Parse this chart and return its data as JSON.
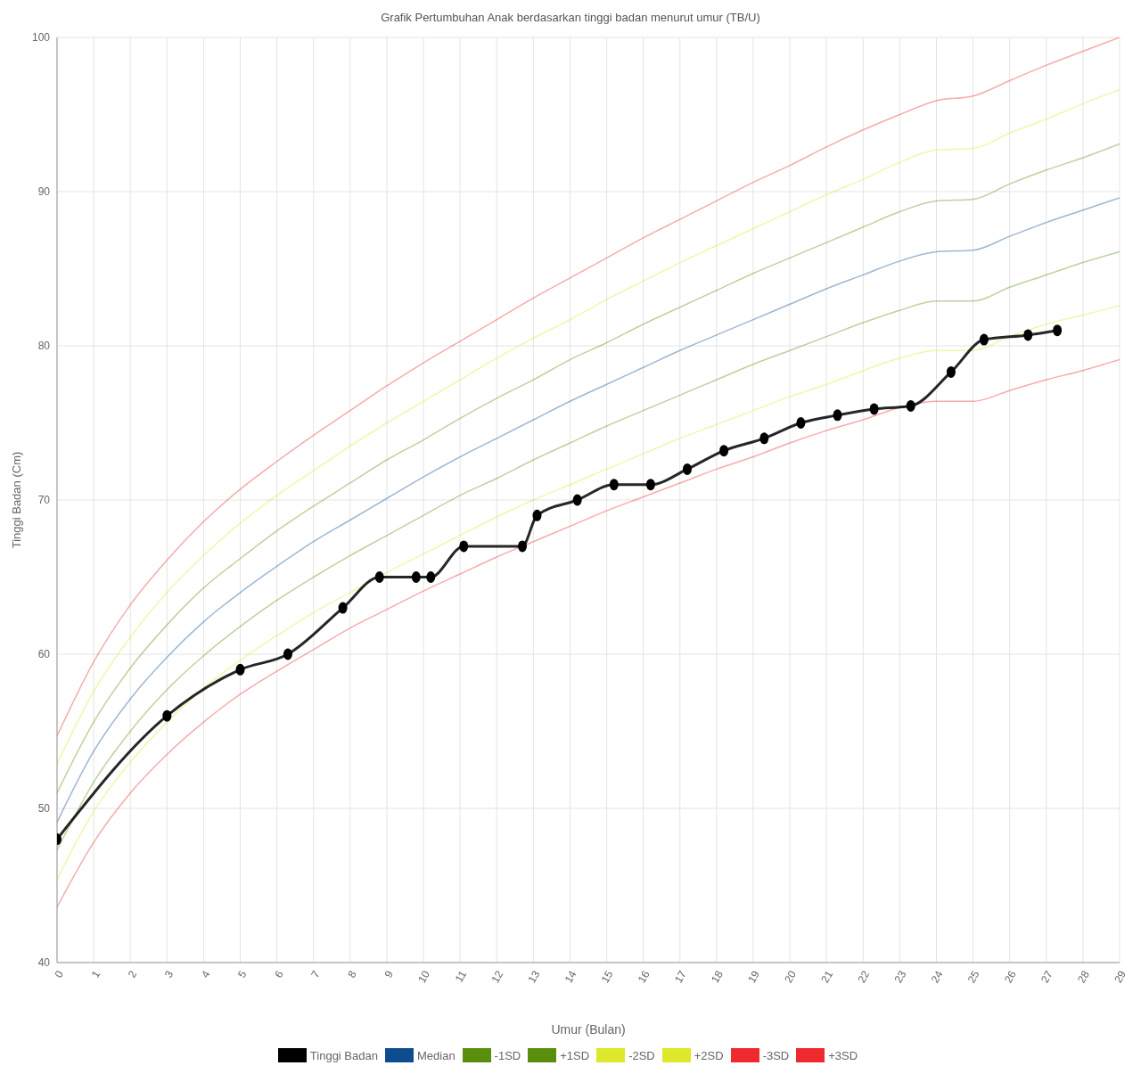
{
  "chart_data": {
    "type": "line",
    "title": "Grafik Pertumbuhan Anak  berdasarkan  tinggi badan menurut umur (TB/U)",
    "xlabel": "Umur (Bulan)",
    "ylabel": "Tinggi Badan (Cm)",
    "x": [
      0,
      1,
      2,
      3,
      4,
      5,
      6,
      7,
      8,
      9,
      10,
      11,
      12,
      13,
      14,
      15,
      16,
      17,
      18,
      19,
      20,
      21,
      22,
      23,
      24,
      25,
      26,
      27,
      28,
      29
    ],
    "xlim": [
      0,
      29
    ],
    "xticks": [
      0,
      1,
      2,
      3,
      4,
      5,
      6,
      7,
      8,
      9,
      10,
      11,
      12,
      13,
      14,
      15,
      16,
      17,
      18,
      19,
      20,
      21,
      22,
      23,
      24,
      25,
      26,
      27,
      28,
      29
    ],
    "ylim": [
      40,
      100
    ],
    "yticks": [
      40,
      50,
      60,
      70,
      80,
      90,
      100
    ],
    "grid": true,
    "legend": "bottom",
    "marker": "circle",
    "line_style": "solid",
    "series": [
      {
        "name": "Tinggi Badan",
        "color": "#000000",
        "x": [
          0,
          3,
          5,
          6.3,
          7.8,
          8.8,
          9.8,
          10.2,
          11.1,
          12.7,
          13.1,
          14.2,
          15.2,
          16.2,
          17.2,
          18.2,
          19.3,
          20.3,
          21.3,
          22.3,
          23.3,
          24.4,
          25.3,
          26.5,
          27.3
        ],
        "values": [
          48,
          56,
          59,
          60,
          63,
          65,
          65,
          65,
          67,
          67,
          69,
          70,
          71,
          71,
          72,
          73.2,
          74,
          75,
          75.5,
          75.9,
          76.1,
          78.3,
          80.4,
          80.7,
          81
        ]
      },
      {
        "name": "Median",
        "color": "#0d4c8f",
        "marker": "none",
        "values": [
          49.1,
          53.7,
          57.1,
          59.8,
          62.1,
          64.0,
          65.7,
          67.3,
          68.7,
          70.1,
          71.5,
          72.8,
          74.0,
          75.2,
          76.4,
          77.5,
          78.6,
          79.7,
          80.7,
          81.7,
          82.7,
          83.7,
          84.6,
          85.5,
          86.1,
          86.2,
          87.1,
          88.0,
          88.8,
          89.6
        ]
      },
      {
        "name": "-1SD",
        "color": "#5a8f0e",
        "marker": "none",
        "values": [
          47.3,
          51.7,
          55.0,
          57.7,
          59.9,
          61.8,
          63.5,
          65.0,
          66.4,
          67.7,
          69.0,
          70.3,
          71.4,
          72.6,
          73.7,
          74.8,
          75.8,
          76.8,
          77.8,
          78.8,
          79.7,
          80.6,
          81.5,
          82.3,
          82.9,
          82.9,
          83.8,
          84.6,
          85.4,
          86.1
        ]
      },
      {
        "name": "+1SD",
        "color": "#5a8f0e",
        "marker": "none",
        "values": [
          51.0,
          55.6,
          59.1,
          61.9,
          64.3,
          66.2,
          68.0,
          69.6,
          71.1,
          72.6,
          73.9,
          75.3,
          76.6,
          77.8,
          79.1,
          80.2,
          81.4,
          82.5,
          83.6,
          84.7,
          85.7,
          86.7,
          87.7,
          88.7,
          89.4,
          89.5,
          90.5,
          91.4,
          92.2,
          93.1
        ]
      },
      {
        "name": "-2SD",
        "color": "#dde82a",
        "marker": "none",
        "values": [
          45.4,
          49.8,
          53.0,
          55.6,
          57.8,
          59.6,
          61.2,
          62.7,
          64.0,
          65.3,
          66.5,
          67.7,
          68.9,
          70.0,
          71.0,
          72.0,
          73.0,
          74.0,
          74.9,
          75.8,
          76.7,
          77.5,
          78.4,
          79.2,
          79.7,
          79.7,
          80.6,
          81.4,
          82.0,
          82.6
        ]
      },
      {
        "name": "+2SD",
        "color": "#dde82a",
        "marker": "none",
        "values": [
          52.9,
          57.6,
          61.1,
          64.0,
          66.4,
          68.5,
          70.3,
          71.9,
          73.5,
          75.0,
          76.4,
          77.8,
          79.2,
          80.5,
          81.7,
          83.0,
          84.2,
          85.4,
          86.5,
          87.6,
          88.7,
          89.8,
          90.8,
          91.9,
          92.7,
          92.8,
          93.8,
          94.7,
          95.7,
          96.6
        ]
      },
      {
        "name": "-3SD",
        "color": "#ee2a2e",
        "marker": "none",
        "values": [
          43.6,
          47.8,
          51.0,
          53.5,
          55.6,
          57.4,
          58.9,
          60.3,
          61.7,
          62.9,
          64.1,
          65.2,
          66.3,
          67.3,
          68.3,
          69.3,
          70.2,
          71.1,
          72.0,
          72.8,
          73.7,
          74.5,
          75.2,
          76.0,
          76.4,
          76.4,
          77.1,
          77.8,
          78.4,
          79.1
        ]
      },
      {
        "name": "+3SD",
        "color": "#ee2a2e",
        "marker": "none",
        "values": [
          54.7,
          59.5,
          63.2,
          66.1,
          68.6,
          70.7,
          72.5,
          74.2,
          75.8,
          77.4,
          78.9,
          80.3,
          81.7,
          83.1,
          84.4,
          85.7,
          87.0,
          88.2,
          89.4,
          90.6,
          91.7,
          92.9,
          94.0,
          95.0,
          95.9,
          96.2,
          97.2,
          98.2,
          99.1,
          100.0
        ]
      }
    ]
  }
}
